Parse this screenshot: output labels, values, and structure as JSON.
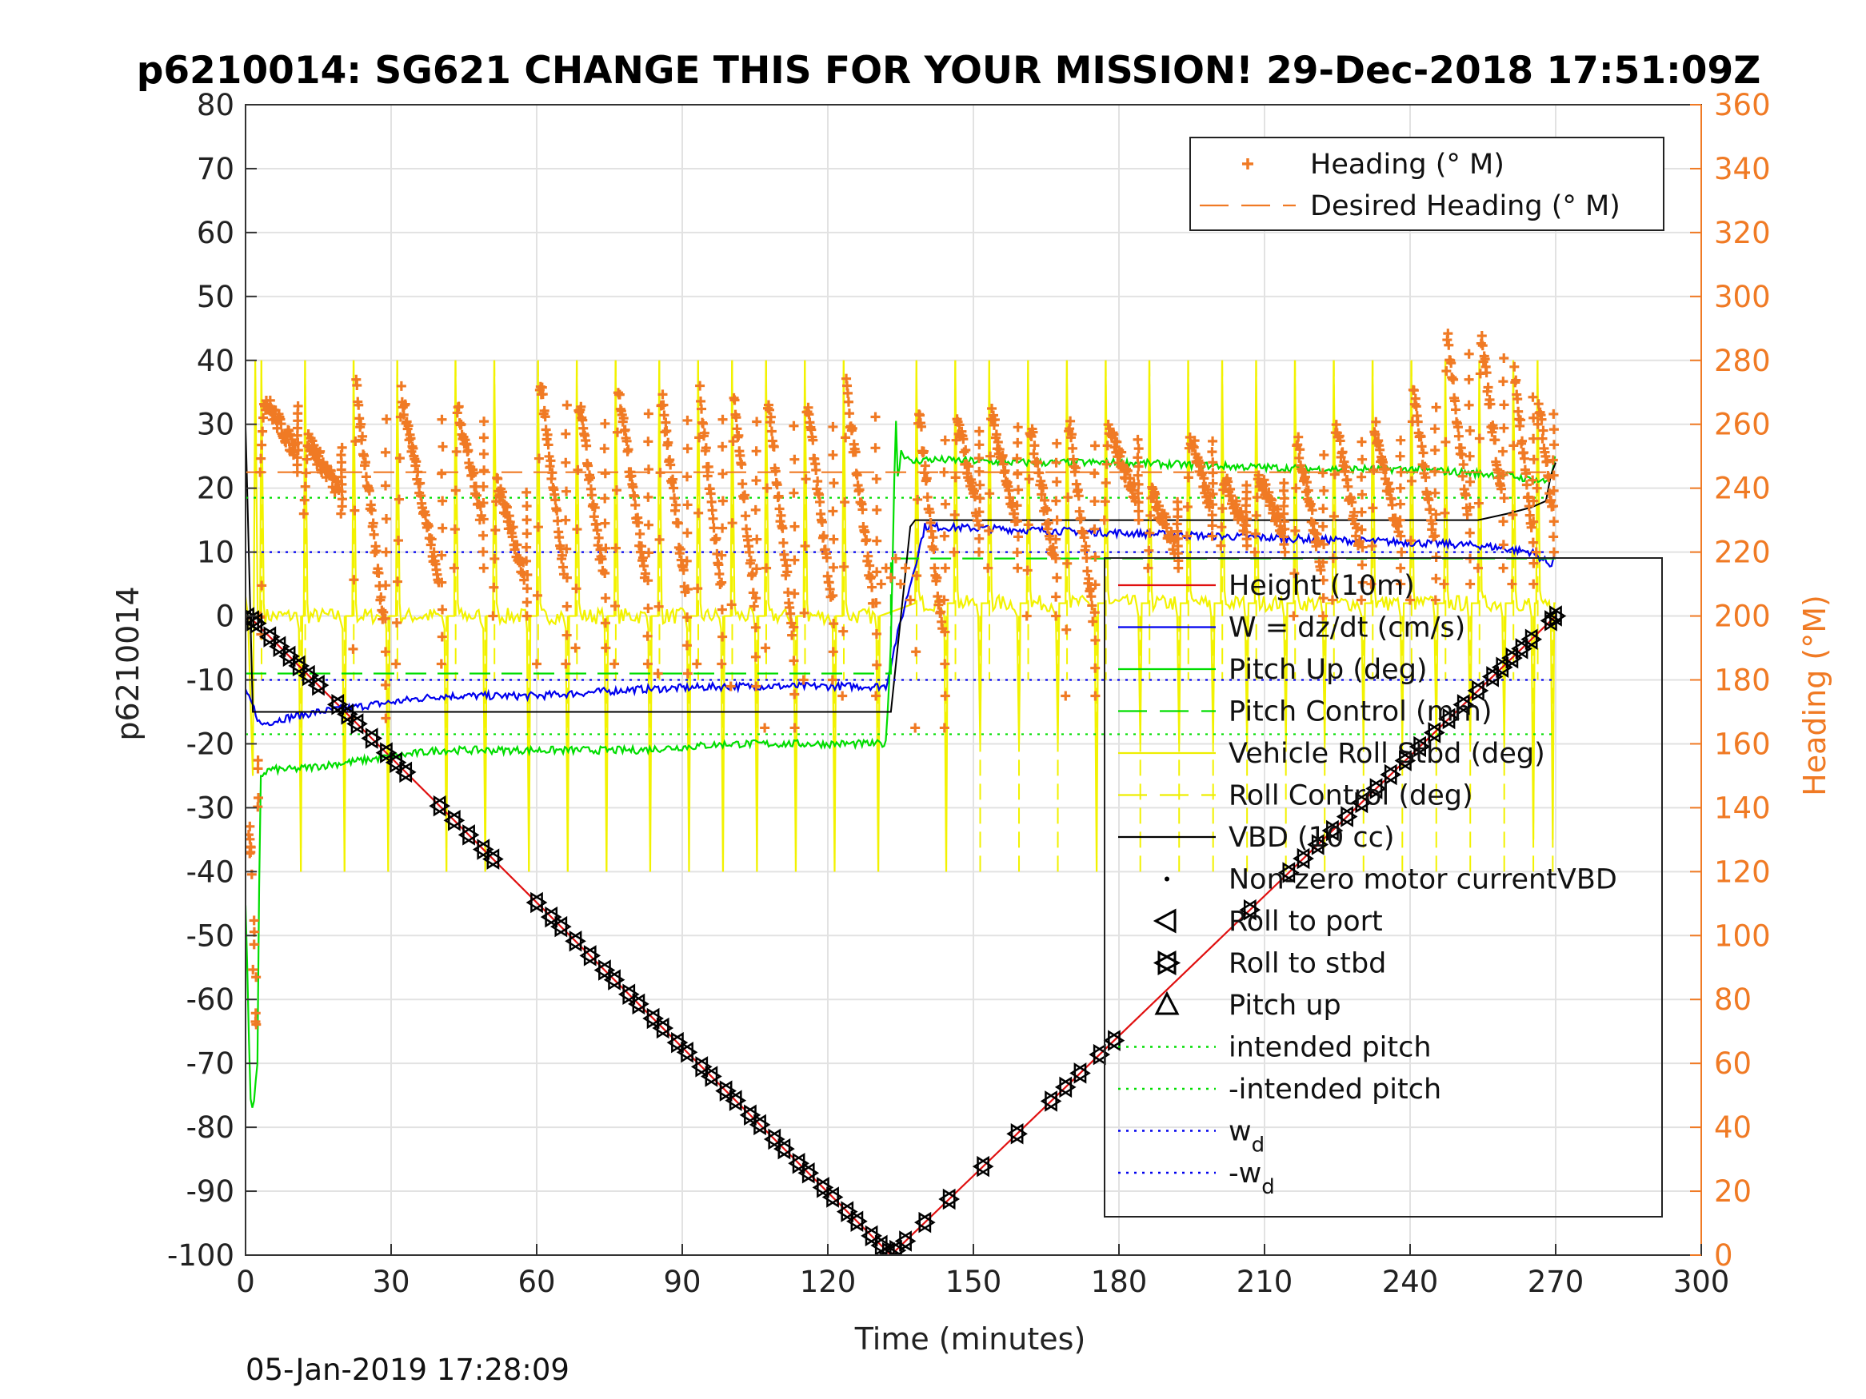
{
  "chart_data": {
    "type": "line",
    "title": "p6210014: SG621 CHANGE THIS FOR YOUR MISSION! 29-Dec-2018 17:51:09Z",
    "xlabel": "Time (minutes)",
    "ylabel": "p6210014",
    "y2label": "Heading (°M)",
    "xlim": [
      0,
      300
    ],
    "ylim": [
      -100,
      80
    ],
    "y2lim": [
      0,
      360
    ],
    "xticks": [
      "0",
      "30",
      "60",
      "90",
      "120",
      "150",
      "180",
      "210",
      "240",
      "270",
      "300"
    ],
    "yticks": [
      "80",
      "70",
      "60",
      "50",
      "40",
      "30",
      "20",
      "10",
      "0",
      "-10",
      "-20",
      "-30",
      "-40",
      "-50",
      "-60",
      "-70",
      "-80",
      "-90",
      "-100"
    ],
    "y2ticks": [
      "360",
      "340",
      "320",
      "300",
      "280",
      "260",
      "240",
      "220",
      "200",
      "180",
      "160",
      "140",
      "120",
      "100",
      "80",
      "60",
      "40",
      "20",
      "0"
    ],
    "grid": true,
    "footer": "05-Jan-2019 17:28:09",
    "legend_top": [
      {
        "name": "Heading (° M)",
        "color": "#f07a24",
        "style": "plus"
      },
      {
        "name": "Desired Heading (° M)",
        "color": "#f07a24",
        "style": "dash"
      }
    ],
    "legend_main": [
      {
        "name": "Height (10m)",
        "color": "#e01010",
        "style": "solid"
      },
      {
        "name": "W = dz/dt (cm/s)",
        "color": "#0000ee",
        "style": "solid"
      },
      {
        "name": "Pitch Up (deg)",
        "color": "#00dd00",
        "style": "solid"
      },
      {
        "name": "Pitch Control (mm)",
        "color": "#00dd00",
        "style": "dash"
      },
      {
        "name": "Vehicle Roll Stbd (deg)",
        "color": "#eeee00",
        "style": "solid"
      },
      {
        "name": "Roll Control (deg)",
        "color": "#eeee00",
        "style": "dash"
      },
      {
        "name": "VBD (10 cc)",
        "color": "#000000",
        "style": "solid"
      },
      {
        "name": "Non-zero motor currentVBD",
        "color": "#000000",
        "style": "dot"
      },
      {
        "name": "Roll to port",
        "color": "#000000",
        "style": "tri-left"
      },
      {
        "name": "Roll to stbd",
        "color": "#000000",
        "style": "tri-right"
      },
      {
        "name": "Pitch up",
        "color": "#000000",
        "style": "tri-up"
      },
      {
        "name": "intended pitch",
        "color": "#00dd00",
        "style": "dotted"
      },
      {
        "name": "-intended pitch",
        "color": "#00dd00",
        "style": "dotted"
      },
      {
        "name": "w",
        "sub": "d",
        "color": "#0000ee",
        "style": "dotted"
      },
      {
        "name": "-w",
        "sub": "d",
        "color": "#0000ee",
        "style": "dotted"
      }
    ],
    "series": [
      {
        "name": "Height (10m)",
        "color": "#e01010",
        "x": [
          0,
          2,
          133,
          270
        ],
        "y": [
          0,
          -1,
          -100,
          0
        ]
      },
      {
        "name": "W = dz/dt (cm/s)",
        "color": "#0000ee",
        "x": [
          0,
          1.5,
          3,
          8,
          15,
          25,
          40,
          60,
          80,
          100,
          120,
          132,
          134,
          140,
          160,
          180,
          200,
          220,
          240,
          255,
          265,
          269,
          270
        ],
        "y": [
          -12,
          -14,
          -17,
          -16,
          -15,
          -14,
          -12.5,
          -12.5,
          -11.5,
          -11,
          -11,
          -11,
          -4,
          14,
          13.5,
          13,
          12.5,
          12,
          11.5,
          11,
          10,
          8,
          10
        ]
      },
      {
        "name": "Pitch Up (deg)",
        "color": "#00dd00",
        "x": [
          0,
          1,
          1.5,
          2.5,
          3,
          5,
          10,
          20,
          30,
          40,
          60,
          80,
          100,
          120,
          132,
          133,
          134,
          134.5,
          135,
          137,
          140,
          160,
          180,
          200,
          220,
          240,
          260,
          268,
          269,
          270
        ],
        "y": [
          -45,
          -75,
          -78,
          -70,
          -25,
          -24,
          -24,
          -23,
          -22,
          -21,
          -21,
          -21,
          -20,
          -20,
          -20,
          -4,
          32,
          20,
          26,
          24,
          24.5,
          24,
          24,
          23.5,
          23,
          23,
          22,
          21,
          22,
          25
        ]
      },
      {
        "name": "Pitch Control (mm)",
        "color": "#00dd00",
        "x": [
          0,
          133,
          133.01,
          270
        ],
        "y": [
          -9,
          -9,
          9,
          9
        ]
      },
      {
        "name": "VBD (10 cc)",
        "color": "#000000",
        "x": [
          0,
          1.5,
          133,
          137,
          138,
          254,
          260,
          265,
          268,
          269,
          270
        ],
        "y": [
          30,
          -15,
          -15,
          14,
          15,
          15,
          16,
          17,
          18,
          22,
          24
        ]
      },
      {
        "name": "intended pitch",
        "color": "#00dd00",
        "x": [
          0,
          270
        ],
        "y": [
          18.5,
          18.5
        ]
      },
      {
        "name": "-intended pitch",
        "color": "#00dd00",
        "x": [
          0,
          270
        ],
        "y": [
          -18.5,
          -18.5
        ]
      },
      {
        "name": "w",
        "color": "#0000ee",
        "x": [
          0,
          270
        ],
        "y": [
          10,
          10
        ]
      },
      {
        "name": "-w",
        "color": "#0000ee",
        "x": [
          0,
          270
        ],
        "y": [
          -10,
          -10
        ]
      },
      {
        "name": "Desired Heading (° M)",
        "color": "#f07a24",
        "x": [
          0,
          270
        ],
        "y2": [
          245,
          245
        ]
      }
    ],
    "vbd_marker_times": [
      0.5,
      1.5,
      2.2,
      5,
      7,
      9,
      11,
      13,
      15,
      19,
      21,
      23,
      26,
      29,
      31,
      33,
      40,
      43,
      46,
      49,
      51,
      60,
      63,
      65,
      68,
      71,
      74,
      76,
      79,
      81,
      84,
      86,
      89,
      91,
      94,
      96,
      99,
      101,
      104,
      106,
      109,
      111,
      114,
      116,
      119,
      121,
      124,
      126,
      129,
      131,
      132.5,
      134,
      136,
      140,
      145,
      152,
      159,
      166,
      169,
      172,
      176,
      179,
      207,
      215,
      218,
      221,
      224,
      227,
      230,
      233,
      236,
      239,
      242,
      245,
      248,
      251,
      254,
      257,
      259,
      261,
      263,
      265,
      269,
      270
    ],
    "heading_cycles": [
      {
        "t0": 3,
        "t1": 12,
        "hi": 268,
        "lo": 245
      },
      {
        "t0": 12,
        "t1": 21,
        "hi": 255,
        "lo": 232
      },
      {
        "t0": 22,
        "t1": 30,
        "hi": 272,
        "lo": 168
      },
      {
        "t0": 31,
        "t1": 42,
        "hi": 270,
        "lo": 185
      },
      {
        "t0": 43,
        "t1": 50,
        "hi": 266,
        "lo": 215
      },
      {
        "t0": 51,
        "t1": 59,
        "hi": 243,
        "lo": 200
      },
      {
        "t0": 60,
        "t1": 67,
        "hi": 275,
        "lo": 185
      },
      {
        "t0": 68,
        "t1": 75,
        "hi": 268,
        "lo": 190
      },
      {
        "t0": 76,
        "t1": 84,
        "hi": 272,
        "lo": 185
      },
      {
        "t0": 85,
        "t1": 92,
        "hi": 270,
        "lo": 182
      },
      {
        "t0": 93,
        "t1": 99,
        "hi": 270,
        "lo": 185
      },
      {
        "t0": 100,
        "t1": 106,
        "hi": 270,
        "lo": 178
      },
      {
        "t0": 107,
        "t1": 114,
        "hi": 270,
        "lo": 165
      },
      {
        "t0": 115,
        "t1": 122,
        "hi": 268,
        "lo": 180
      },
      {
        "t0": 123,
        "t1": 131,
        "hi": 272,
        "lo": 175
      },
      {
        "t0": 138,
        "t1": 145,
        "hi": 265,
        "lo": 165
      },
      {
        "t0": 146,
        "t1": 152,
        "hi": 262,
        "lo": 220
      },
      {
        "t0": 153,
        "t1": 160,
        "hi": 264,
        "lo": 215
      },
      {
        "t0": 161,
        "t1": 168,
        "hi": 260,
        "lo": 200
      },
      {
        "t0": 169,
        "t1": 176,
        "hi": 262,
        "lo": 175
      },
      {
        "t0": 177,
        "t1": 185,
        "hi": 258,
        "lo": 230
      },
      {
        "t0": 186,
        "t1": 193,
        "hi": 238,
        "lo": 215
      },
      {
        "t0": 194,
        "t1": 200,
        "hi": 258,
        "lo": 225
      },
      {
        "t0": 201,
        "t1": 207,
        "hi": 243,
        "lo": 222
      },
      {
        "t0": 208,
        "t1": 215,
        "hi": 244,
        "lo": 220
      },
      {
        "t0": 216,
        "t1": 223,
        "hi": 256,
        "lo": 200
      },
      {
        "t0": 224,
        "t1": 231,
        "hi": 260,
        "lo": 205
      },
      {
        "t0": 232,
        "t1": 239,
        "hi": 260,
        "lo": 210
      },
      {
        "t0": 240,
        "t1": 246,
        "hi": 272,
        "lo": 205
      },
      {
        "t0": 247,
        "t1": 253,
        "hi": 290,
        "lo": 210
      },
      {
        "t0": 254,
        "t1": 260,
        "hi": 288,
        "lo": 215
      },
      {
        "t0": 261,
        "t1": 266,
        "hi": 275,
        "lo": 210
      },
      {
        "t0": 266,
        "t1": 270,
        "hi": 268,
        "lo": 220
      }
    ],
    "heading_start": {
      "x": [
        0.5,
        1,
        1.5,
        2,
        2.5,
        3
      ],
      "y2": [
        130,
        120,
        95,
        80,
        150,
        200
      ]
    },
    "heading_mid": {
      "x": [
        131,
        132,
        133,
        134,
        135,
        136,
        137
      ],
      "y2": [
        210,
        215,
        212,
        218,
        210,
        215,
        205
      ]
    }
  }
}
